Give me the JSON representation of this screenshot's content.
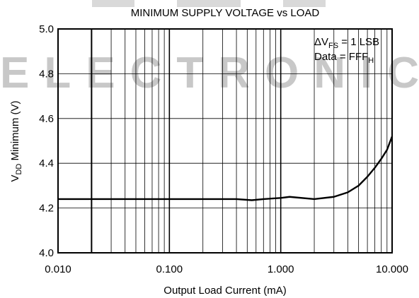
{
  "chart_data": {
    "type": "line",
    "title": "MINIMUM SUPPLY VOLTAGE vs LOAD",
    "watermark": "ELECTRONIC",
    "xlabel": "Output Load Current (mA)",
    "ylabel": {
      "main": "V",
      "sub": "DD",
      "rest": " Minimum (V)"
    },
    "annotation": [
      {
        "main": "ΔV",
        "sub": "FS",
        "rest": " = 1 LSB"
      },
      {
        "main": "Data = FFF",
        "sub": "H",
        "rest": ""
      }
    ],
    "xscale": "log",
    "xlim": [
      0.01,
      10
    ],
    "ylim": [
      4.0,
      5.0
    ],
    "xticks": [
      {
        "value": 0.01,
        "label": "0.010"
      },
      {
        "value": 0.1,
        "label": "0.100"
      },
      {
        "value": 1,
        "label": "1.000"
      },
      {
        "value": 10,
        "label": "10.000"
      }
    ],
    "yticks": [
      {
        "value": 4,
        "label": "4.0"
      },
      4.2,
      4.4,
      4.6,
      4.8,
      {
        "value": 5,
        "label": "5.0"
      }
    ],
    "x_minor_grid": [
      0.02,
      0.03,
      0.04,
      0.05,
      0.06,
      0.07,
      0.08,
      0.09,
      0.2,
      0.3,
      0.4,
      0.5,
      0.6,
      0.7,
      0.8,
      0.9,
      2,
      3,
      4,
      5,
      6,
      7,
      8,
      9
    ],
    "x_heavy_grid": [
      0.02
    ],
    "grid": true,
    "color": "#000000",
    "x": [
      0.01,
      0.1,
      0.4,
      0.55,
      0.7,
      1.0,
      1.2,
      2.0,
      3.0,
      4.0,
      5.0,
      6.0,
      7.0,
      8.0,
      9.0,
      10.0
    ],
    "values": [
      4.24,
      4.24,
      4.24,
      4.235,
      4.24,
      4.245,
      4.25,
      4.24,
      4.25,
      4.27,
      4.3,
      4.34,
      4.38,
      4.42,
      4.46,
      4.52
    ]
  }
}
